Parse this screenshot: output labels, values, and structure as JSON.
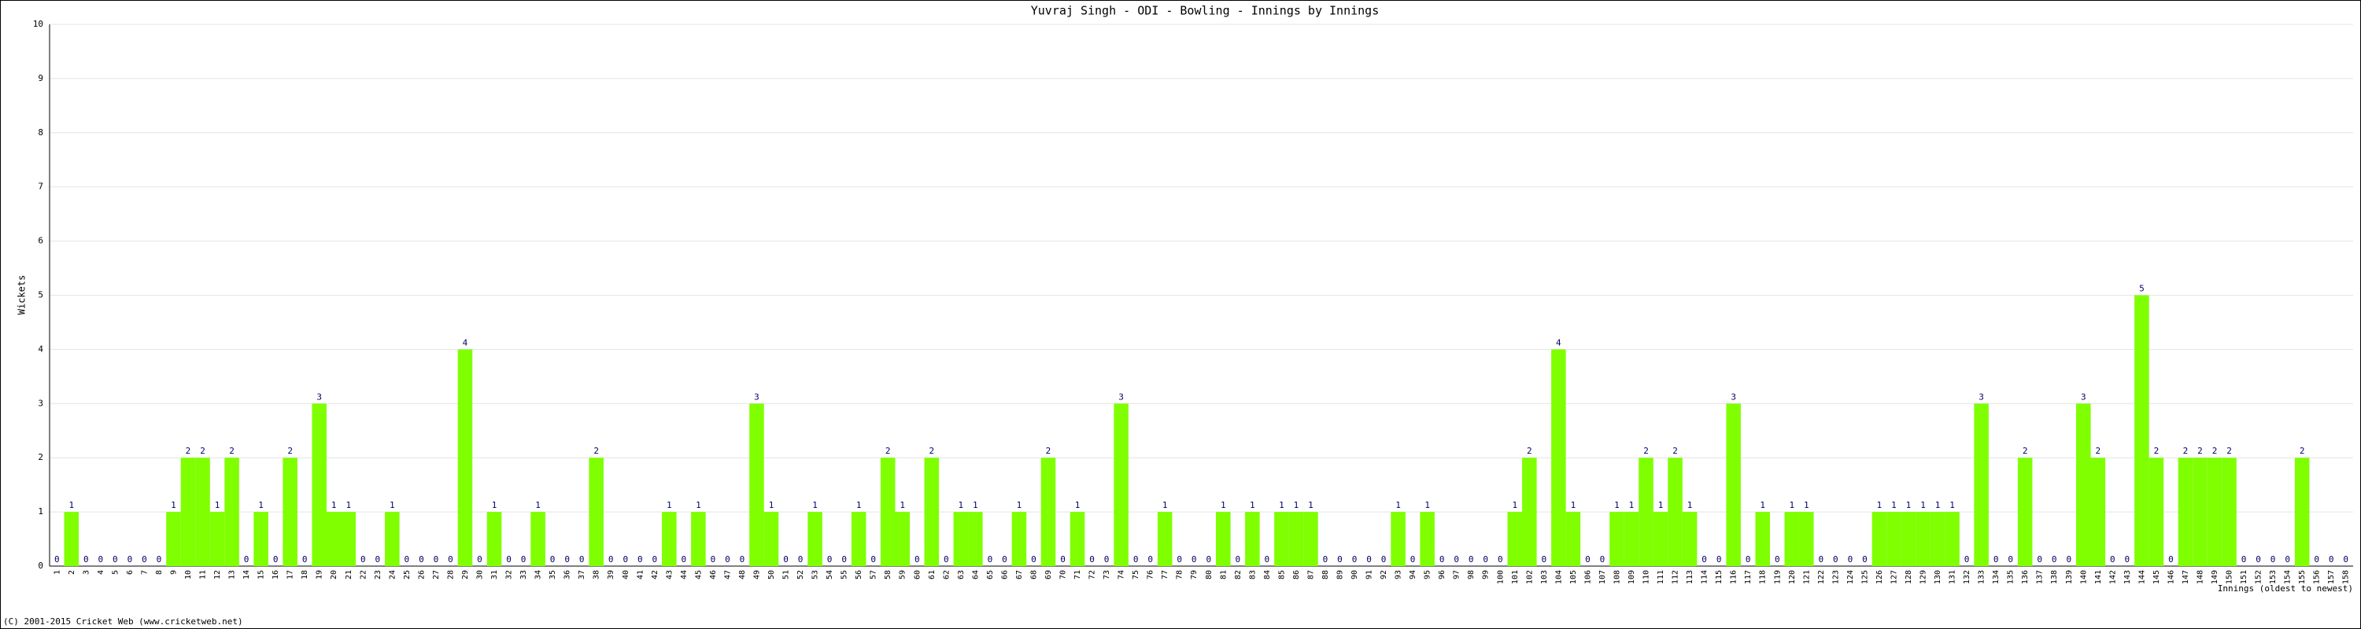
{
  "chart_data": {
    "type": "bar",
    "title": "Yuvraj Singh - ODI - Bowling - Innings by Innings",
    "y_label": "Wickets",
    "x_label": "Innings (oldest to newest)",
    "footer": "(C) 2001-2015 Cricket Web (www.cricketweb.net)",
    "categories": [
      "1",
      "2",
      "3",
      "4",
      "5",
      "6",
      "7",
      "8",
      "9",
      "10",
      "11",
      "12",
      "13",
      "14",
      "15",
      "16",
      "17",
      "18",
      "19",
      "20",
      "21",
      "22",
      "23",
      "24",
      "25",
      "26",
      "27",
      "28",
      "29",
      "30",
      "31",
      "32",
      "33",
      "34",
      "35",
      "36",
      "37",
      "38",
      "39",
      "40",
      "41",
      "42",
      "43",
      "44",
      "45",
      "46",
      "47",
      "48",
      "49",
      "50",
      "51",
      "52",
      "53",
      "54",
      "55",
      "56",
      "57",
      "58",
      "59",
      "60",
      "61",
      "62",
      "63",
      "64",
      "65",
      "66",
      "67",
      "68",
      "69",
      "70",
      "71",
      "72",
      "73",
      "74",
      "75",
      "76",
      "77",
      "78",
      "79",
      "80",
      "81",
      "82",
      "83",
      "84",
      "85",
      "86",
      "87",
      "88",
      "89",
      "90",
      "91",
      "92",
      "93",
      "94",
      "95",
      "96",
      "97",
      "98",
      "99",
      "100",
      "101",
      "102",
      "103",
      "104",
      "105",
      "106",
      "107",
      "108",
      "109",
      "110",
      "111",
      "112",
      "113",
      "114",
      "115",
      "116",
      "117",
      "118",
      "119",
      "120",
      "121",
      "122",
      "123",
      "124",
      "125",
      "126",
      "127",
      "128",
      "129",
      "130",
      "131",
      "132",
      "133",
      "134",
      "135",
      "136",
      "137",
      "138",
      "139",
      "140",
      "141",
      "142",
      "143",
      "144",
      "145",
      "146",
      "147",
      "148",
      "149",
      "150",
      "151",
      "152",
      "153",
      "154",
      "155",
      "156",
      "157",
      "158"
    ],
    "values": [
      0,
      1,
      0,
      0,
      0,
      0,
      0,
      0,
      1,
      2,
      2,
      1,
      2,
      0,
      1,
      0,
      2,
      0,
      3,
      1,
      1,
      0,
      0,
      1,
      0,
      0,
      0,
      0,
      4,
      0,
      1,
      0,
      0,
      1,
      0,
      0,
      0,
      2,
      0,
      0,
      0,
      0,
      1,
      0,
      1,
      0,
      0,
      0,
      3,
      1,
      0,
      0,
      1,
      0,
      0,
      1,
      0,
      2,
      1,
      0,
      2,
      0,
      1,
      1,
      0,
      0,
      1,
      0,
      2,
      0,
      1,
      0,
      0,
      3,
      0,
      0,
      1,
      0,
      0,
      0,
      1,
      0,
      1,
      0,
      1,
      1,
      1,
      0,
      0,
      0,
      0,
      0,
      1,
      0,
      1,
      0,
      0,
      0,
      0,
      0,
      1,
      2,
      0,
      4,
      1,
      0,
      0,
      1,
      1,
      2,
      1,
      2,
      1,
      0,
      0,
      3,
      0,
      1,
      0,
      1,
      1,
      0,
      0,
      0,
      0,
      1,
      1,
      1,
      1,
      1,
      1,
      0,
      3,
      0,
      0,
      2,
      0,
      0,
      0,
      3,
      2,
      0,
      0,
      5,
      2,
      0,
      2,
      2,
      2,
      2,
      0,
      0,
      0,
      0,
      2,
      0,
      0,
      0
    ],
    "color": "#7fff00",
    "label_color": "#000066",
    "ylim": [
      0,
      10
    ],
    "yticks": [
      0,
      1,
      2,
      3,
      4,
      5,
      6,
      7,
      8,
      9,
      10
    ],
    "grid": true
  }
}
